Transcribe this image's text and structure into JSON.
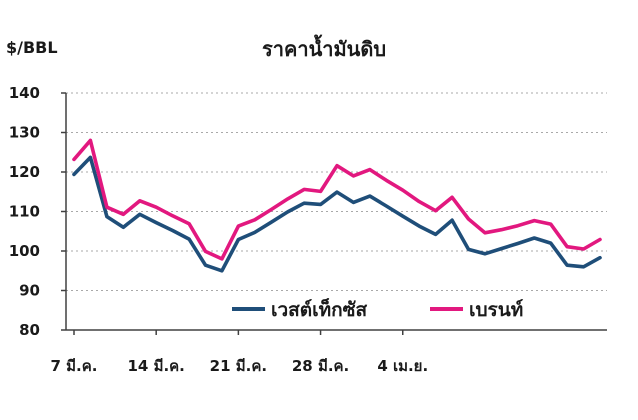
{
  "colors": {
    "wti": "#1f4e79",
    "brent": "#e2187f"
  },
  "chart_data": {
    "type": "line",
    "title": "ราคาน้ำมันดิบ",
    "ylabel": "$/BBL",
    "xlabel": "",
    "ylim": [
      80,
      140
    ],
    "yticks": [
      80,
      90,
      100,
      110,
      120,
      130,
      140
    ],
    "grid": true,
    "legend_position": "bottom-center",
    "xticks": [
      {
        "label": "7 มี.ค.",
        "index": 0
      },
      {
        "label": "14 มี.ค.",
        "index": 5
      },
      {
        "label": "21 มี.ค.",
        "index": 10
      },
      {
        "label": "28 มี.ค.",
        "index": 15
      },
      {
        "label": "4 เม.ย.",
        "index": 20
      }
    ],
    "series": [
      {
        "name": "เวสต์เท็กซัส",
        "color_key": "wti",
        "values": [
          119.4,
          123.7,
          108.7,
          106.0,
          109.3,
          107.2,
          105.2,
          103.0,
          96.4,
          95.0,
          102.9,
          104.7,
          107.3,
          109.9,
          112.1,
          111.8,
          114.9,
          112.3,
          113.9,
          111.4,
          108.8,
          106.3,
          104.2,
          107.8,
          100.4,
          99.3,
          100.6,
          101.9,
          103.3,
          102.0,
          96.4,
          96.0,
          98.3
        ]
      },
      {
        "name": "เบรนท์",
        "color_key": "brent",
        "values": [
          123.2,
          128.0,
          111.1,
          109.3,
          112.7,
          111.1,
          108.9,
          106.9,
          99.9,
          98.0,
          106.3,
          107.9,
          110.5,
          113.2,
          115.6,
          115.1,
          121.6,
          119.0,
          120.6,
          117.9,
          115.4,
          112.5,
          110.2,
          113.6,
          108.1,
          104.6,
          105.4,
          106.4,
          107.7,
          106.8,
          101.1,
          100.5,
          102.9
        ]
      }
    ]
  }
}
